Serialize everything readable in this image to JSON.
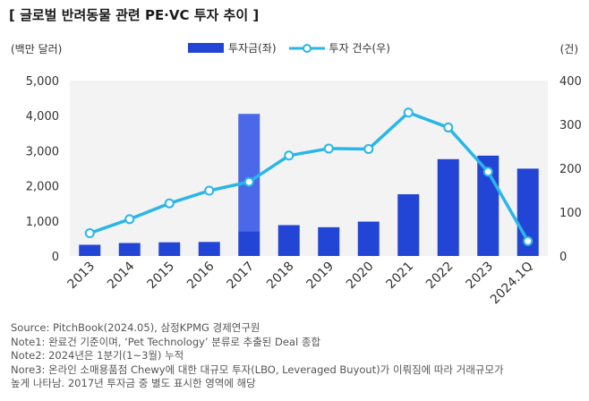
{
  "title": "[ 글로벌 반려동물 관련 PE·VC 투자 추이 ]",
  "unit_left": "(백만 달러)",
  "unit_right": "(건)",
  "legend": {
    "bar_label": "투자금(좌)",
    "line_label": "투자 건수(우)"
  },
  "colors": {
    "bar": "#2345d6",
    "bar_highlight": "#4a68e8",
    "line": "#29b6e8",
    "marker_fill": "#ffffff",
    "axis_text": "#333333",
    "plot_bg": "#f3f3f3"
  },
  "chart_data": {
    "type": "bar",
    "categories": [
      "2013",
      "2014",
      "2015",
      "2016",
      "2017",
      "2018",
      "2019",
      "2020",
      "2021",
      "2022",
      "2023",
      "2024.1Q"
    ],
    "series": [
      {
        "name": "투자금(좌)",
        "type": "bar",
        "axis": "left",
        "values": [
          320,
          370,
          390,
          400,
          4050,
          880,
          820,
          980,
          1760,
          2760,
          2860,
          2490
        ],
        "highlight": {
          "category": "2017",
          "base_value": 700
        }
      },
      {
        "name": "투자 건수(우)",
        "type": "line",
        "axis": "right",
        "values": [
          52,
          84,
          120,
          149,
          169,
          229,
          245,
          244,
          327,
          293,
          192,
          34
        ]
      }
    ],
    "y_left": {
      "min": 0,
      "max": 5000,
      "ticks": [
        "0",
        "1,000",
        "2,000",
        "3,000",
        "4,000",
        "5,000"
      ]
    },
    "y_right": {
      "min": 0,
      "max": 400,
      "ticks": [
        "0",
        "100",
        "200",
        "300",
        "400"
      ]
    }
  },
  "notes": [
    "Source: PitchBook(2024.05), 삼정KPMG 경제연구원",
    "Note1: 완료건 기준이며, ‘Pet Technology’ 분류로 추출된 Deal 종합",
    "Note2: 2024년은 1분기(1~3월) 누적",
    "Nore3: 온라인 소매용품점 Chewy에 대한 대규모 투자(LBO, Leveraged Buyout)가 이뤄짐에 따라 거래규모가",
    "높게 나타남. 2017년 투자금 중 별도 표시한 영역에 해당"
  ]
}
